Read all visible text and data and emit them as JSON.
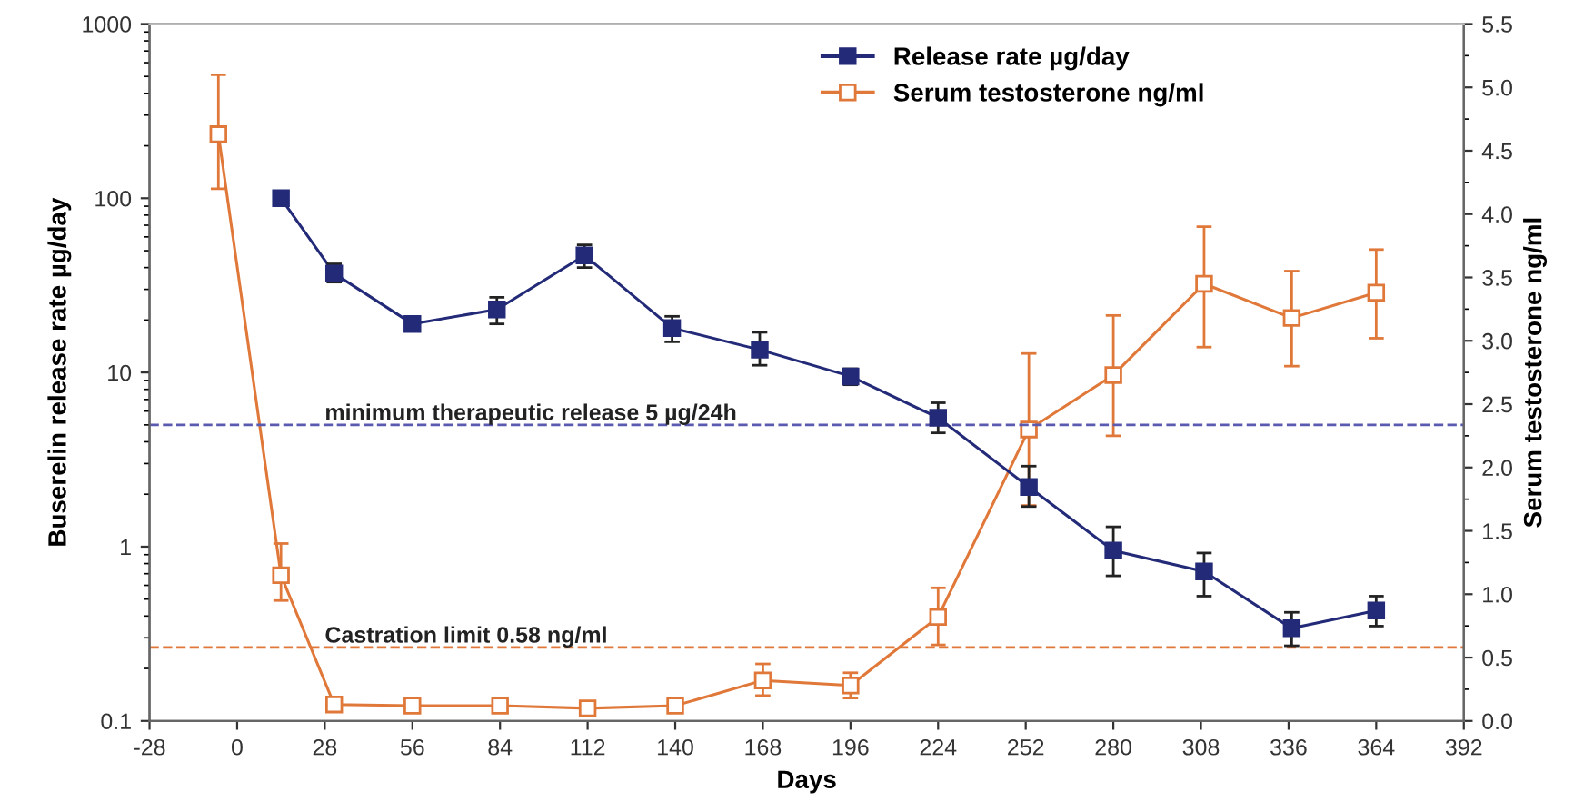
{
  "chart_data": {
    "type": "line",
    "xlabel": "Days",
    "ylabel": "Buserelin release rate µg/day",
    "y2label": "Serum testosterone ng/ml",
    "log": "y",
    "xlim": [
      -28,
      392
    ],
    "xticks": [
      -28,
      0,
      28,
      56,
      84,
      112,
      140,
      168,
      196,
      224,
      252,
      280,
      308,
      336,
      364,
      392
    ],
    "ylim": [
      0.1,
      1000
    ],
    "yticks": [
      0.1,
      1,
      10,
      100,
      1000
    ],
    "y2lim": [
      0,
      5.5
    ],
    "y2ticks": [
      {
        "value": 0,
        "label": "0.0"
      },
      {
        "value": 0.5,
        "label": "0.5"
      },
      {
        "value": 1,
        "label": "1.0"
      },
      {
        "value": 1.5,
        "label": "1.5"
      },
      {
        "value": 2,
        "label": "2.0"
      },
      {
        "value": 2.5,
        "label": "2.5"
      },
      {
        "value": 3,
        "label": "3.0"
      },
      {
        "value": 3.5,
        "label": "3.5"
      },
      {
        "value": 4,
        "label": "4.0"
      },
      {
        "value": 4.5,
        "label": "4.5"
      },
      {
        "value": 5,
        "label": "5.0"
      },
      {
        "value": 5.5,
        "label": "5.5"
      }
    ],
    "grid": false,
    "legend": "top right",
    "line_style": "solid",
    "series": [
      {
        "name": "Release rate µg/day",
        "color": "#232a78",
        "marker": "square",
        "x": [
          14,
          31,
          56,
          83,
          111,
          139,
          167,
          196,
          224,
          253,
          280,
          309,
          337,
          364
        ],
        "values": [
          100,
          37,
          19,
          23,
          47,
          18,
          13.5,
          9.5,
          5.5,
          2.2,
          0.95,
          0.72,
          0.34,
          0.43
        ],
        "errors": [
          null,
          [
            33,
            42
          ],
          null,
          [
            19,
            27
          ],
          [
            40,
            54
          ],
          [
            15,
            21
          ],
          [
            11,
            17
          ],
          [
            8.5,
            10.5
          ],
          [
            4.5,
            6.7
          ],
          [
            1.7,
            2.9
          ],
          [
            0.68,
            1.3
          ],
          [
            0.52,
            0.92
          ],
          [
            0.27,
            0.42
          ],
          [
            0.35,
            0.52
          ]
        ]
      },
      {
        "name": "Serum testosterone ng/ml",
        "color": "#e0783a",
        "marker": "square",
        "axis": "y2",
        "x": [
          -6,
          14,
          31,
          56,
          84,
          112,
          140,
          168,
          196,
          224,
          253,
          280,
          309,
          337,
          364
        ],
        "values": [
          4.63,
          1.15,
          0.13,
          0.12,
          0.12,
          0.1,
          0.12,
          0.32,
          0.28,
          0.82,
          2.3,
          2.73,
          3.45,
          3.18,
          3.38
        ],
        "errors": [
          [
            4.2,
            5.1
          ],
          [
            0.95,
            1.4
          ],
          null,
          null,
          null,
          null,
          null,
          [
            0.2,
            0.45
          ],
          [
            0.18,
            0.38
          ],
          [
            0.6,
            1.05
          ],
          [
            1.7,
            2.9
          ],
          [
            2.25,
            3.2
          ],
          [
            2.95,
            3.9
          ],
          [
            2.8,
            3.55
          ],
          [
            3.02,
            3.72
          ]
        ]
      }
    ],
    "ref_lines": [
      {
        "axis": "y",
        "value": 5,
        "label": "minimum therapeutic release 5 µg/24h",
        "color": "#5a5ab0",
        "line_style": "dashed"
      },
      {
        "axis": "y2",
        "value": 0.58,
        "label": "Castration limit 0.58 ng/ml",
        "color": "#e0783a",
        "line_style": "dashed"
      }
    ]
  }
}
